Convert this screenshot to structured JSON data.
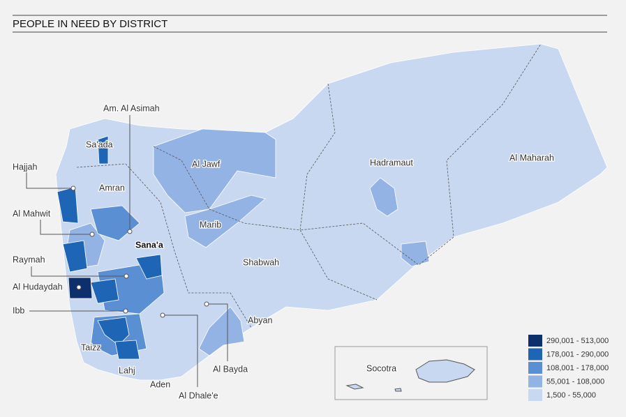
{
  "header": {
    "title": "PEOPLE IN NEED BY DISTRICT"
  },
  "map": {
    "labels": [
      "Sa'ada",
      "Hajjah",
      "Amran",
      "Al Jawf",
      "Al Mahwit",
      "Am. Al Asimah",
      "Marib",
      "Sana'a",
      "Raymah",
      "Al Hudaydah",
      "Ibb",
      "Shabwah",
      "Abyan",
      "Hadramaut",
      "Al Maharah",
      "Taizz",
      "Lahj",
      "Aden",
      "Al Dhale'e",
      "Al Bayda"
    ],
    "inset_label": "Socotra"
  },
  "legend": {
    "items": [
      {
        "label": "290,001 - 513,000",
        "color": "#0d2f6b"
      },
      {
        "label": "178,001 - 290,000",
        "color": "#1f65b6"
      },
      {
        "label": "108,001 - 178,000",
        "color": "#5b8fd3"
      },
      {
        "label": "55,001 - 108,000",
        "color": "#93b3e4"
      },
      {
        "label": "1,500  - 55,000",
        "color": "#c8d8f1"
      }
    ]
  }
}
